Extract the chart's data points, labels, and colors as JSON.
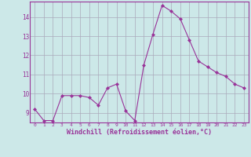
{
  "x": [
    0,
    1,
    2,
    3,
    4,
    5,
    6,
    7,
    8,
    9,
    10,
    11,
    12,
    13,
    14,
    15,
    16,
    17,
    18,
    19,
    20,
    21,
    22,
    23
  ],
  "y": [
    9.2,
    8.6,
    8.6,
    9.9,
    9.9,
    9.9,
    9.8,
    9.4,
    10.3,
    10.5,
    9.1,
    8.6,
    11.5,
    13.1,
    14.6,
    14.3,
    13.9,
    12.8,
    11.7,
    11.4,
    11.1,
    10.9,
    10.5,
    10.3
  ],
  "line_color": "#993399",
  "marker_color": "#993399",
  "bg_color": "#cce8e8",
  "grid_color": "#aaaabb",
  "xlabel": "Windchill (Refroidissement éolien,°C)",
  "xlabel_color": "#993399",
  "tick_color": "#993399",
  "ylim_min": 8.5,
  "ylim_max": 14.8,
  "xlim_min": -0.5,
  "xlim_max": 23.5,
  "yticks": [
    9,
    10,
    11,
    12,
    13,
    14
  ],
  "xticks": [
    0,
    1,
    2,
    3,
    4,
    5,
    6,
    7,
    8,
    9,
    10,
    11,
    12,
    13,
    14,
    15,
    16,
    17,
    18,
    19,
    20,
    21,
    22,
    23
  ]
}
